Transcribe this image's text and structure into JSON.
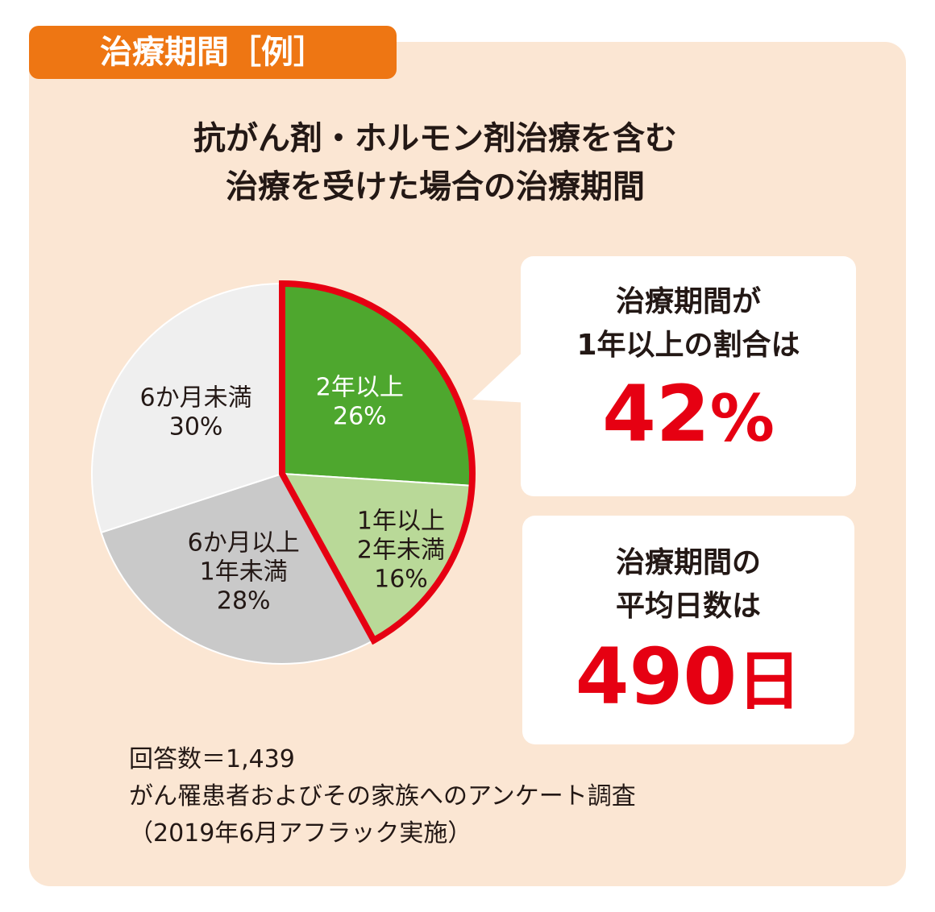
{
  "tag": "治療期間［例］",
  "title": {
    "line1": "抗がん剤・ホルモン剤治療を含む",
    "line2": "治療を受けた場合の治療期間"
  },
  "colors": {
    "panel": "#fbe6d3",
    "tag": "#ee7613",
    "highlight": "#e60012",
    "green_dark": "#4ea72e",
    "green_light": "#b9d998",
    "gray_mid": "#c9c9c9",
    "gray_light": "#efefef"
  },
  "chart_data": {
    "type": "pie",
    "slices": [
      {
        "label_lines": [
          "2年以上",
          "26%"
        ],
        "value": 26,
        "color": "#4ea72e",
        "text_color": "#ffffff"
      },
      {
        "label_lines": [
          "1年以上",
          "2年未満",
          "16%"
        ],
        "value": 16,
        "color": "#b9d998",
        "text_color": "#231815"
      },
      {
        "label_lines": [
          "6か月以上",
          "1年未満",
          "28%"
        ],
        "value": 28,
        "color": "#c9c9c9",
        "text_color": "#231815"
      },
      {
        "label_lines": [
          "6か月未満",
          "30%"
        ],
        "value": 30,
        "color": "#efefef",
        "text_color": "#231815"
      }
    ],
    "highlighted_slices": [
      0,
      1
    ]
  },
  "callout1": {
    "line1": "治療期間が",
    "line2": "1年以上の割合は",
    "value": "42",
    "unit": "%"
  },
  "callout2": {
    "line1": "治療期間の",
    "line2": "平均日数は",
    "value": "490",
    "unit": "日"
  },
  "note": {
    "line1": "回答数＝1,439",
    "line2": "がん罹患者およびその家族へのアンケート調査",
    "line3": "（2019年6月アフラック実施）"
  }
}
